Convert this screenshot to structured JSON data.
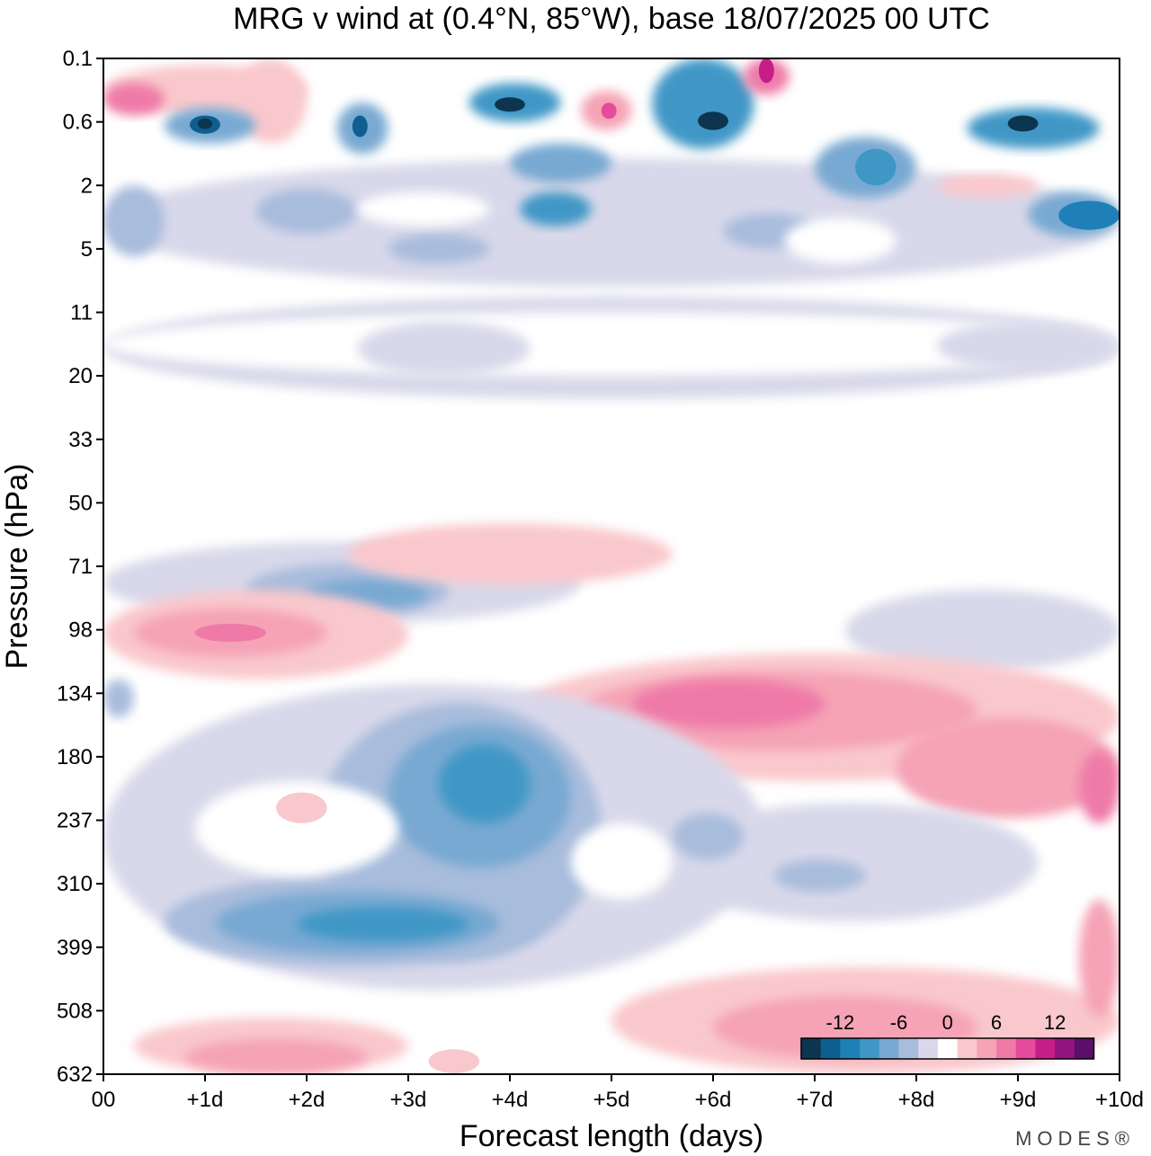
{
  "chart_data": {
    "type": "heatmap",
    "title": "MRG v wind at (0.4°N, 85°W),  base 18/07/2025  00 UTC",
    "xlabel": "Forecast length (days)",
    "ylabel": "Pressure (hPa)",
    "x_ticks": [
      "00",
      "+1d",
      "+2d",
      "+3d",
      "+4d",
      "+5d",
      "+6d",
      "+7d",
      "+8d",
      "+9d",
      "+10d"
    ],
    "xlim": [
      0,
      10
    ],
    "y_ticks": [
      "0.1",
      "0.6",
      "2",
      "5",
      "11",
      "20",
      "33",
      "50",
      "71",
      "98",
      "134",
      "180",
      "237",
      "310",
      "399",
      "508",
      "632"
    ],
    "y_scale": "log",
    "grid": false,
    "colorbar": {
      "placement": "bottom-right",
      "labels": [
        "-12",
        "-6",
        "0",
        "6",
        "12"
      ],
      "levels": [
        -14,
        -12,
        -10,
        -8,
        -6,
        -4,
        -2,
        2,
        4,
        6,
        8,
        10,
        12,
        14
      ],
      "colors": [
        "#0d3550",
        "#0e5f8f",
        "#1f80b8",
        "#3f97c6",
        "#78a9d2",
        "#a8bcdc",
        "#d8d8ea",
        "#ffffff",
        "#f9c8cc",
        "#f5a3b5",
        "#ef7aa8",
        "#e44b9a",
        "#c51e88",
        "#93147e",
        "#5a0f6a"
      ]
    },
    "regions": [
      {
        "value": -2,
        "days": [
          0,
          10
        ],
        "hpa": [
          2,
          5
        ],
        "note": "broad negative band upper"
      },
      {
        "value": -6,
        "days": [
          0.9,
          1.1
        ],
        "hpa": [
          0.5,
          0.7
        ]
      },
      {
        "value": -6,
        "days": [
          2.4,
          2.6
        ],
        "hpa": [
          0.5,
          0.7
        ]
      },
      {
        "value": -6,
        "days": [
          3.8,
          4.2
        ],
        "hpa": [
          0.3,
          0.5
        ]
      },
      {
        "value": -6,
        "days": [
          5.9,
          6.2
        ],
        "hpa": [
          0.5,
          0.7
        ]
      },
      {
        "value": -6,
        "days": [
          8.8,
          9.3
        ],
        "hpa": [
          0.6,
          0.8
        ]
      },
      {
        "value": -4,
        "days": [
          9.3,
          10
        ],
        "hpa": [
          2.5,
          4
        ]
      },
      {
        "value": 6,
        "days": [
          6.4,
          6.6
        ],
        "hpa": [
          0.1,
          0.2
        ]
      },
      {
        "value": -4,
        "days": [
          1.5,
          4.5
        ],
        "hpa": [
          75,
          100
        ]
      },
      {
        "value": 4,
        "days": [
          0,
          3
        ],
        "hpa": [
          80,
          120
        ]
      },
      {
        "value": 6,
        "days": [
          5.4,
          7
        ],
        "hpa": [
          120,
          160
        ]
      },
      {
        "value": -6,
        "days": [
          3.2,
          4.2
        ],
        "hpa": [
          170,
          230
        ]
      },
      {
        "value": -6,
        "days": [
          2,
          3.5
        ],
        "hpa": [
          330,
          400
        ]
      },
      {
        "value": 4,
        "days": [
          9.6,
          10
        ],
        "hpa": [
          180,
          240
        ]
      },
      {
        "value": 2,
        "days": [
          0.5,
          3
        ],
        "hpa": [
          520,
          632
        ]
      },
      {
        "value": 2,
        "days": [
          5,
          10
        ],
        "hpa": [
          420,
          600
        ]
      }
    ]
  },
  "credit": "MODES®"
}
